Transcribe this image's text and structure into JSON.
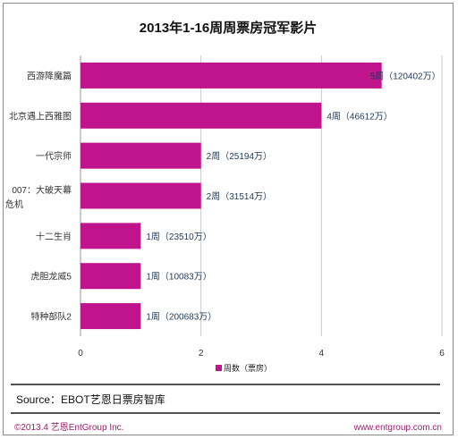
{
  "chart_data": {
    "type": "bar",
    "orientation": "horizontal",
    "title": "2013年1-16周周票房冠军影片",
    "categories": [
      "西游降魔篇",
      "北京遇上西雅图",
      "一代宗师",
      "007：大破天幕危机",
      "十二生肖",
      "虎胆龙威5",
      "特种部队2"
    ],
    "series": [
      {
        "name": "周数（票房）",
        "values": [
          5,
          4,
          2,
          2,
          1,
          1,
          1
        ]
      }
    ],
    "data_labels": [
      "5周（120402万）",
      "4周（46612万）",
      "2周（25194万）",
      "2周（31514万）",
      "1周（23510万）",
      "1周（10083万）",
      "1周（200683万）"
    ],
    "xlim": [
      0,
      6
    ],
    "xticks": [
      0,
      2,
      4,
      6
    ],
    "grid": true,
    "legend_position": "bottom",
    "bar_color": "#C0148C"
  },
  "footer": {
    "source": "Source：EBOT艺恩日票房智库",
    "copyright": "©2013.4 艺恩EntGroup Inc.",
    "website": "www.entgroup.com.cn"
  },
  "colors": {
    "bar": "#C0148C",
    "footer_text": "#9B1B6E",
    "rule": "#1a1a1a"
  }
}
